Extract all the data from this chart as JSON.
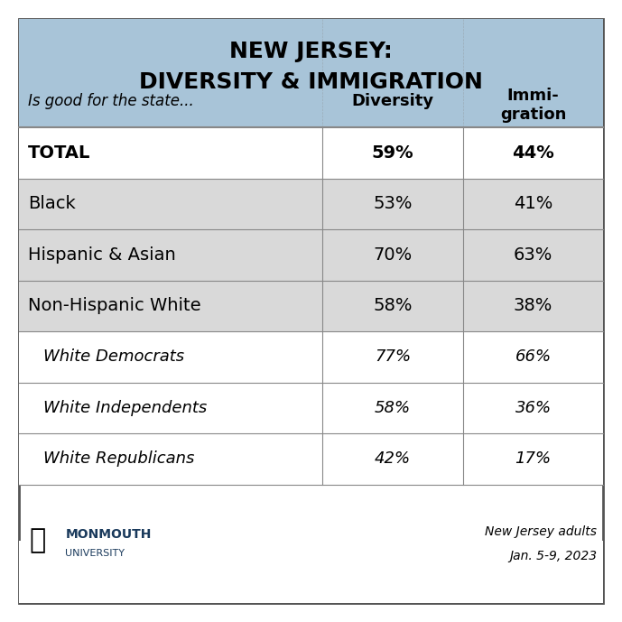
{
  "title_line1": "NEW JERSEY:",
  "title_line2": "DIVERSITY & IMMIGRATION",
  "header_label": "Is good for the state...",
  "col1_header": "Diversity",
  "col2_header": "Immi-\ngration",
  "rows": [
    {
      "label": "TOTAL",
      "diversity": "59%",
      "immigration": "44%",
      "bold": true,
      "italic": false,
      "shaded": false,
      "indent": false
    },
    {
      "label": "Black",
      "diversity": "53%",
      "immigration": "41%",
      "bold": false,
      "italic": false,
      "shaded": true,
      "indent": false
    },
    {
      "label": "Hispanic & Asian",
      "diversity": "70%",
      "immigration": "63%",
      "bold": false,
      "italic": false,
      "shaded": true,
      "indent": false
    },
    {
      "label": "Non-Hispanic White",
      "diversity": "58%",
      "immigration": "38%",
      "bold": false,
      "italic": false,
      "shaded": true,
      "indent": false
    },
    {
      "label": "White Democrats",
      "diversity": "77%",
      "immigration": "66%",
      "bold": false,
      "italic": true,
      "shaded": false,
      "indent": true
    },
    {
      "label": "White Independents",
      "diversity": "58%",
      "immigration": "36%",
      "bold": false,
      "italic": true,
      "shaded": false,
      "indent": true
    },
    {
      "label": "White Republicans",
      "diversity": "42%",
      "immigration": "17%",
      "bold": false,
      "italic": true,
      "shaded": false,
      "indent": true
    }
  ],
  "header_bg": "#a8c4d8",
  "shaded_bg": "#d9d9d9",
  "white_bg": "#ffffff",
  "border_color": "#888888",
  "title_fontsize": 18,
  "header_fontsize": 13,
  "row_fontsize": 14,
  "footer_text1": "New Jersey adults",
  "footer_text2": "Jan. 5-9, 2023",
  "fig_bg": "#ffffff",
  "outer_border_color": "#555555"
}
